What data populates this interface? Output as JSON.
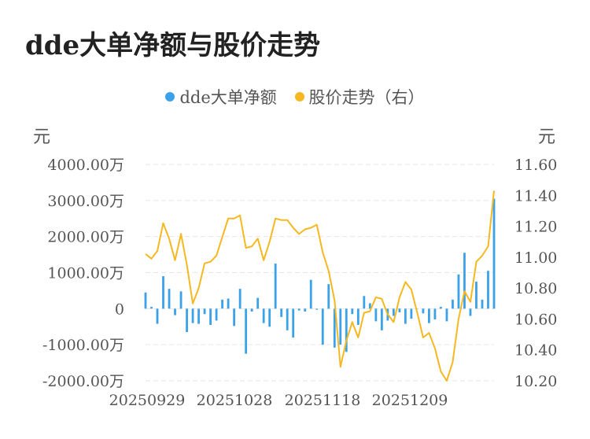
{
  "title": "dde大单净额与股价走势",
  "legend": [
    {
      "label": "dde大单净额",
      "color": "#3ba1e8"
    },
    {
      "label": "股价走势（右）",
      "color": "#f5b820"
    }
  ],
  "units": {
    "left": "元",
    "right": "元"
  },
  "chart_data": {
    "type": "bar",
    "x_ticks": [
      "20250929",
      "20251028",
      "20251118",
      "20251209"
    ],
    "y_left": {
      "ticks": [
        "4000.00万",
        "3000.00万",
        "2000.00万",
        "1000.00万",
        "0",
        "-1000.00万",
        "-2000.00万"
      ],
      "range": [
        -2000,
        4000
      ],
      "unit": "万"
    },
    "y_right": {
      "ticks": [
        "11.60",
        "11.40",
        "11.20",
        "11.00",
        "10.80",
        "10.60",
        "10.40",
        "10.20"
      ],
      "range": [
        10.2,
        11.6
      ]
    },
    "grid": true,
    "series": [
      {
        "name": "dde大单净额",
        "type": "bar",
        "color": "#3ba1e8",
        "values": [
          450,
          50,
          -420,
          900,
          550,
          -180,
          480,
          -650,
          -400,
          -420,
          -150,
          -450,
          -330,
          250,
          280,
          -480,
          550,
          -1250,
          -80,
          300,
          -400,
          -500,
          1250,
          -230,
          -600,
          -800,
          -50,
          -80,
          800,
          -30,
          -1000,
          680,
          -1080,
          -1000,
          -1200,
          -150,
          -450,
          350,
          150,
          -350,
          -600,
          -330,
          -200,
          -100,
          -420,
          -280,
          0,
          -130,
          -400,
          -300,
          50,
          -350,
          250,
          950,
          1550,
          -200,
          750,
          250,
          1050,
          3050
        ]
      },
      {
        "name": "股价走势（右）",
        "type": "line",
        "color": "#f5b820",
        "values": [
          11.02,
          10.99,
          11.04,
          11.22,
          11.12,
          10.98,
          11.15,
          10.95,
          10.7,
          10.8,
          10.96,
          10.97,
          11.01,
          11.13,
          11.25,
          11.25,
          11.27,
          11.06,
          11.07,
          11.12,
          10.98,
          11.1,
          11.25,
          11.24,
          11.24,
          11.19,
          11.15,
          11.18,
          11.19,
          11.21,
          11.03,
          10.91,
          10.72,
          10.29,
          10.46,
          10.58,
          10.48,
          10.64,
          10.65,
          10.74,
          10.73,
          10.63,
          10.58,
          10.74,
          10.84,
          10.79,
          10.64,
          10.48,
          10.51,
          10.41,
          10.26,
          10.2,
          10.32,
          10.6,
          10.78,
          10.71,
          10.97,
          11.01,
          11.07,
          11.43
        ]
      }
    ]
  }
}
